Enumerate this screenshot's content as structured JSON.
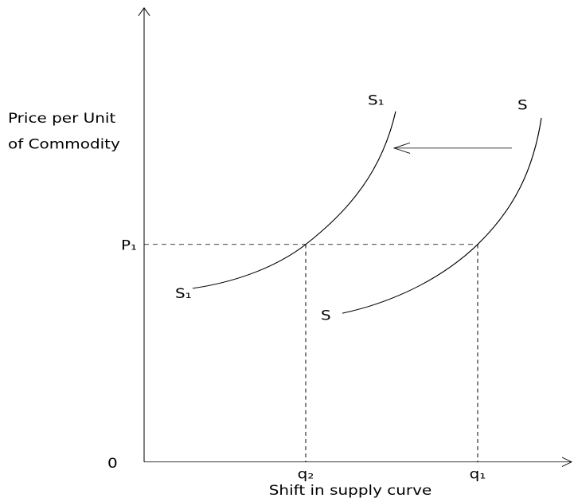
{
  "y_axis_label": [
    "Price per Unit",
    "of Commodity"
  ],
  "price_label": "P₁",
  "origin_label": "0",
  "quantity_labels": [
    "q₂",
    "q₁"
  ],
  "caption": "Shift in supply curve",
  "curve_labels": {
    "new_top": "S₁",
    "new_bottom": "S₁",
    "old_top": "S",
    "old_bottom": "S"
  }
}
